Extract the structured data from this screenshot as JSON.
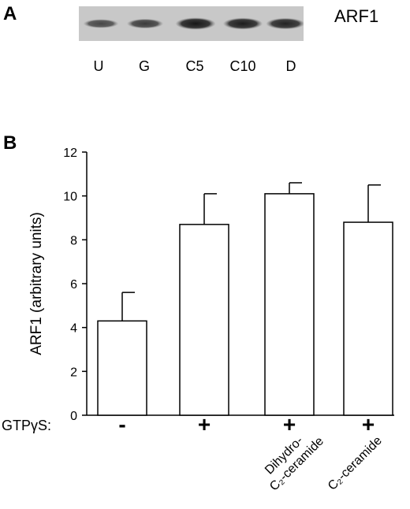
{
  "panel_a": {
    "letter": "A",
    "protein": "ARF1",
    "lanes": [
      "U",
      "G",
      "C5",
      "C10",
      "D"
    ],
    "band_intensity": [
      0.55,
      0.65,
      0.95,
      0.9,
      0.85
    ]
  },
  "panel_b": {
    "letter": "B",
    "gtp_label": "GTPγS:",
    "gtp_marks": [
      "-",
      "+",
      "+",
      "+"
    ],
    "treatment_labels": [
      {
        "line1": "",
        "line2": ""
      },
      {
        "line1": "",
        "line2": ""
      },
      {
        "line1": "Dihydro-",
        "line2": "C₂-ceramide"
      },
      {
        "line1": "",
        "line2": "C₂-ceramide"
      }
    ]
  },
  "chart_data": {
    "type": "bar",
    "categories": [
      "-",
      "+",
      "Dihydro-C₂-ceramide",
      "C₂-ceramide"
    ],
    "values": [
      4.3,
      8.7,
      10.1,
      8.8
    ],
    "errors": [
      1.3,
      1.4,
      0.5,
      1.7
    ],
    "title": "",
    "xlabel": "",
    "ylabel": "ARF1 (arbitrary units)",
    "ylim": [
      0,
      12
    ],
    "yticks": [
      "0",
      "2",
      "4",
      "6",
      "8",
      "10",
      "12"
    ],
    "grid": false
  }
}
